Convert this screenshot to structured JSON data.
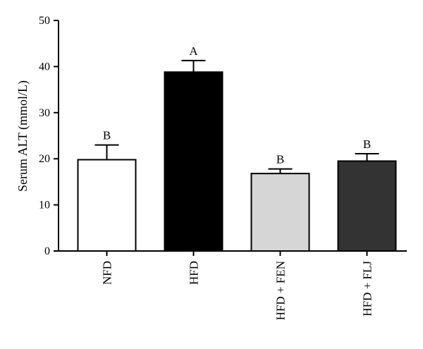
{
  "chart_data": {
    "type": "bar",
    "categories": [
      "NFD",
      "HFD",
      "HFD + FEN",
      "HFD + FLJ"
    ],
    "values": [
      19.8,
      38.8,
      16.8,
      19.5
    ],
    "errors": [
      3.2,
      2.5,
      1.0,
      1.6
    ],
    "significance": [
      "B",
      "A",
      "B",
      "B"
    ],
    "colors": [
      "#ffffff",
      "#000000",
      "#d6d6d6",
      "#333333"
    ],
    "ylabel": "Serum ALT (mmol/L)",
    "xlabel": "",
    "title": "",
    "ylim": [
      0,
      50
    ],
    "yticks": [
      0,
      10,
      20,
      30,
      40,
      50
    ],
    "grid": false,
    "legend": "none"
  }
}
